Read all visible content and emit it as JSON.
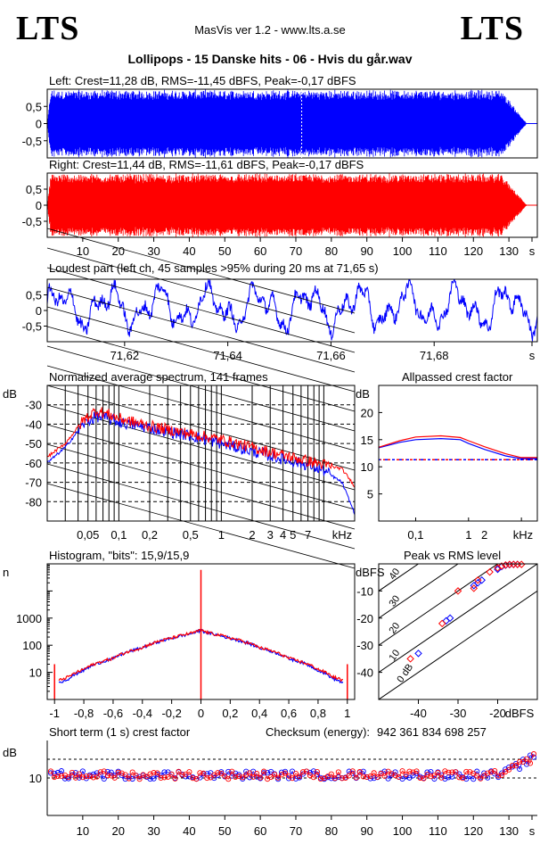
{
  "header": {
    "logo_left": "LTS",
    "logo_right": "LTS",
    "app": "MasVis ver 1.2 - www.lts.a.se",
    "file_title": "Lollipops - 15 Danske hits  - 06 - Hvis du går.wav"
  },
  "colors": {
    "left": "#0000ff",
    "right": "#ff0000"
  },
  "chart_data": [
    {
      "id": "left",
      "type": "area",
      "title": "Left: Crest=11,28 dB, RMS=-11,45 dBFS, Peak=-0,17 dBFS",
      "y_ticks": [
        "0,5",
        "0",
        "-0,5"
      ],
      "xlim": [
        0,
        138
      ],
      "ylim": [
        -1,
        1
      ],
      "envelope": {
        "start_s": 0,
        "end_s": 135,
        "fade_out_start_s": 128,
        "peak": 1.0
      },
      "marker_s": 71.65
    },
    {
      "id": "right",
      "type": "area",
      "title": "Right: Crest=11,44 dB, RMS=-11,61 dBFS, Peak=-0,17 dBFS",
      "y_ticks": [
        "0,5",
        "0",
        "-0,5"
      ],
      "x_ticks": [
        "10",
        "20",
        "30",
        "40",
        "50",
        "60",
        "70",
        "80",
        "90",
        "100",
        "110",
        "120",
        "130",
        "s"
      ],
      "xlim": [
        0,
        138
      ],
      "ylim": [
        -1,
        1
      ]
    },
    {
      "id": "loudest",
      "type": "line",
      "title": "Loudest part (left  ch, 45 samples >95% during 20 ms at 71,65 s)",
      "y_ticks": [
        "0,5",
        "0",
        "-0,5"
      ],
      "x_ticks": [
        "71,62",
        "71,64",
        "71,66",
        "71,68",
        "s"
      ],
      "xlim": [
        71.605,
        71.7
      ],
      "ylim": [
        -1,
        1
      ]
    },
    {
      "id": "spectrum",
      "type": "line",
      "title": "Normalized average spectrum, 141 frames",
      "ylabel": "dB",
      "y_ticks": [
        "-30",
        "-40",
        "-50",
        "-60",
        "-70",
        "-80"
      ],
      "x_ticks": [
        "0,05",
        "0,1",
        "0,2",
        "0,5",
        "1",
        "2",
        "3",
        "4",
        "5",
        "7",
        "kHz"
      ],
      "x_log": true,
      "xlim": [
        0.02,
        20
      ],
      "ylim": [
        -90,
        -20
      ],
      "series": [
        {
          "color": "#0000ff",
          "x": [
            0.02,
            0.03,
            0.045,
            0.06,
            0.08,
            0.1,
            0.2,
            0.5,
            1,
            2,
            4,
            7,
            10,
            15,
            20
          ],
          "y": [
            -60,
            -52,
            -40,
            -36,
            -37,
            -39,
            -42,
            -46,
            -50,
            -54,
            -58,
            -61,
            -64,
            -70,
            -86
          ]
        },
        {
          "color": "#ff0000",
          "x": [
            0.02,
            0.03,
            0.045,
            0.06,
            0.08,
            0.1,
            0.2,
            0.5,
            1,
            2,
            4,
            7,
            10,
            15,
            20
          ],
          "y": [
            -57,
            -50,
            -38,
            -33,
            -35,
            -37,
            -41,
            -45,
            -48,
            -52,
            -56,
            -59,
            -61,
            -63,
            -72
          ]
        }
      ]
    },
    {
      "id": "allpass",
      "type": "line",
      "title": "Allpassed crest factor",
      "ylabel": "dB",
      "y_ticks": [
        "20",
        "15",
        "10",
        "5"
      ],
      "x_ticks": [
        "0,1",
        "1",
        "2",
        "kHz"
      ],
      "x_log": true,
      "xlim": [
        0.02,
        20
      ],
      "ylim": [
        0,
        25
      ],
      "series": [
        {
          "color": "#0000ff",
          "x": [
            0.02,
            0.05,
            0.1,
            0.3,
            0.7,
            1,
            2,
            5,
            10,
            20
          ],
          "y": [
            13.5,
            14.5,
            15.0,
            15.2,
            15.0,
            14.3,
            13.2,
            12.0,
            11.5,
            11.5
          ]
        },
        {
          "color": "#ff0000",
          "x": [
            0.02,
            0.05,
            0.1,
            0.3,
            0.7,
            1,
            2,
            5,
            10,
            20
          ],
          "y": [
            13.6,
            14.8,
            15.5,
            15.7,
            15.4,
            14.8,
            13.7,
            12.4,
            11.7,
            11.7
          ]
        }
      ],
      "ref_level": 11.3
    },
    {
      "id": "histogram",
      "type": "line",
      "title": "Histogram, \"bits\": 15,9/15,9",
      "ylabel": "n",
      "y_ticks": [
        "1000",
        "100",
        "10"
      ],
      "x_ticks": [
        "-1",
        "-0,8",
        "-0,6",
        "-0,4",
        "-0,2",
        "0",
        "0,2",
        "0,4",
        "0,6",
        "0,8",
        "1"
      ],
      "y_log": true,
      "xlim": [
        -1.05,
        1.05
      ],
      "ylim": [
        1,
        100000
      ],
      "series": [
        {
          "color": "#0000ff",
          "x": [
            -0.97,
            -0.9,
            -0.8,
            -0.6,
            -0.4,
            -0.2,
            -0.05,
            0,
            0.05,
            0.2,
            0.4,
            0.6,
            0.8,
            0.9,
            0.97
          ],
          "y": [
            4,
            6,
            12,
            32,
            80,
            180,
            280,
            350,
            280,
            180,
            80,
            32,
            12,
            6,
            4
          ]
        },
        {
          "color": "#ff0000",
          "x": [
            -0.97,
            -0.9,
            -0.8,
            -0.6,
            -0.4,
            -0.2,
            -0.05,
            0,
            0.05,
            0.2,
            0.4,
            0.6,
            0.8,
            0.9,
            0.97
          ],
          "y": [
            5,
            7,
            13,
            33,
            82,
            185,
            290,
            360,
            290,
            185,
            82,
            33,
            13,
            7,
            5
          ]
        }
      ],
      "spikes": [
        {
          "x": -1,
          "y": 20
        },
        {
          "x": 0,
          "y": 60000
        },
        {
          "x": 1,
          "y": 20
        }
      ]
    },
    {
      "id": "peak_rms",
      "type": "scatter",
      "title": "Peak vs RMS level",
      "ylabel": "dBFS",
      "xlabel": "dBFS",
      "y_ticks": [
        "-10",
        "-20",
        "-30",
        "-40"
      ],
      "x_ticks": [
        "-40",
        "-30",
        "-20",
        "dBFS"
      ],
      "xlim": [
        -50,
        -10
      ],
      "ylim": [
        -50,
        0
      ],
      "diagonal_labels": [
        "40",
        "30",
        "20",
        "10",
        "0 dB"
      ],
      "series": [
        {
          "color": "#0000ff",
          "x": [
            -40,
            -33,
            -32,
            -26,
            -25,
            -24,
            -20,
            -19,
            -18,
            -17,
            -16,
            -15
          ],
          "y": [
            -33,
            -21,
            -20,
            -8,
            -7,
            -6,
            -2,
            -1,
            -0.5,
            -0.3,
            -0.2,
            -0.2
          ]
        },
        {
          "color": "#ff0000",
          "x": [
            -42,
            -34,
            -30,
            -26,
            -25,
            -22,
            -20,
            -19,
            -18,
            -17,
            -16,
            -15,
            -14
          ],
          "y": [
            -35,
            -22,
            -10,
            -9,
            -6,
            -3,
            -1.5,
            -0.8,
            -0.4,
            -0.2,
            -0.2,
            -0.2,
            -0.2
          ]
        }
      ]
    },
    {
      "id": "crest",
      "type": "scatter",
      "title": "Short term (1 s) crest factor",
      "ylabel": "dB",
      "y_ticks": [
        "10"
      ],
      "x_ticks": [
        "10",
        "20",
        "30",
        "40",
        "50",
        "60",
        "70",
        "80",
        "90",
        "100",
        "110",
        "120",
        "130",
        "s"
      ],
      "checksum_label": "Checksum (energy):",
      "checksum_value": "942 361 834 698 257",
      "xlim": [
        0,
        138
      ],
      "ylim": [
        0,
        20
      ],
      "ref_levels": [
        10,
        15
      ],
      "series_mean": 10.8,
      "tail_rise_start_s": 128,
      "tail_rise_peak": 15.5
    }
  ]
}
